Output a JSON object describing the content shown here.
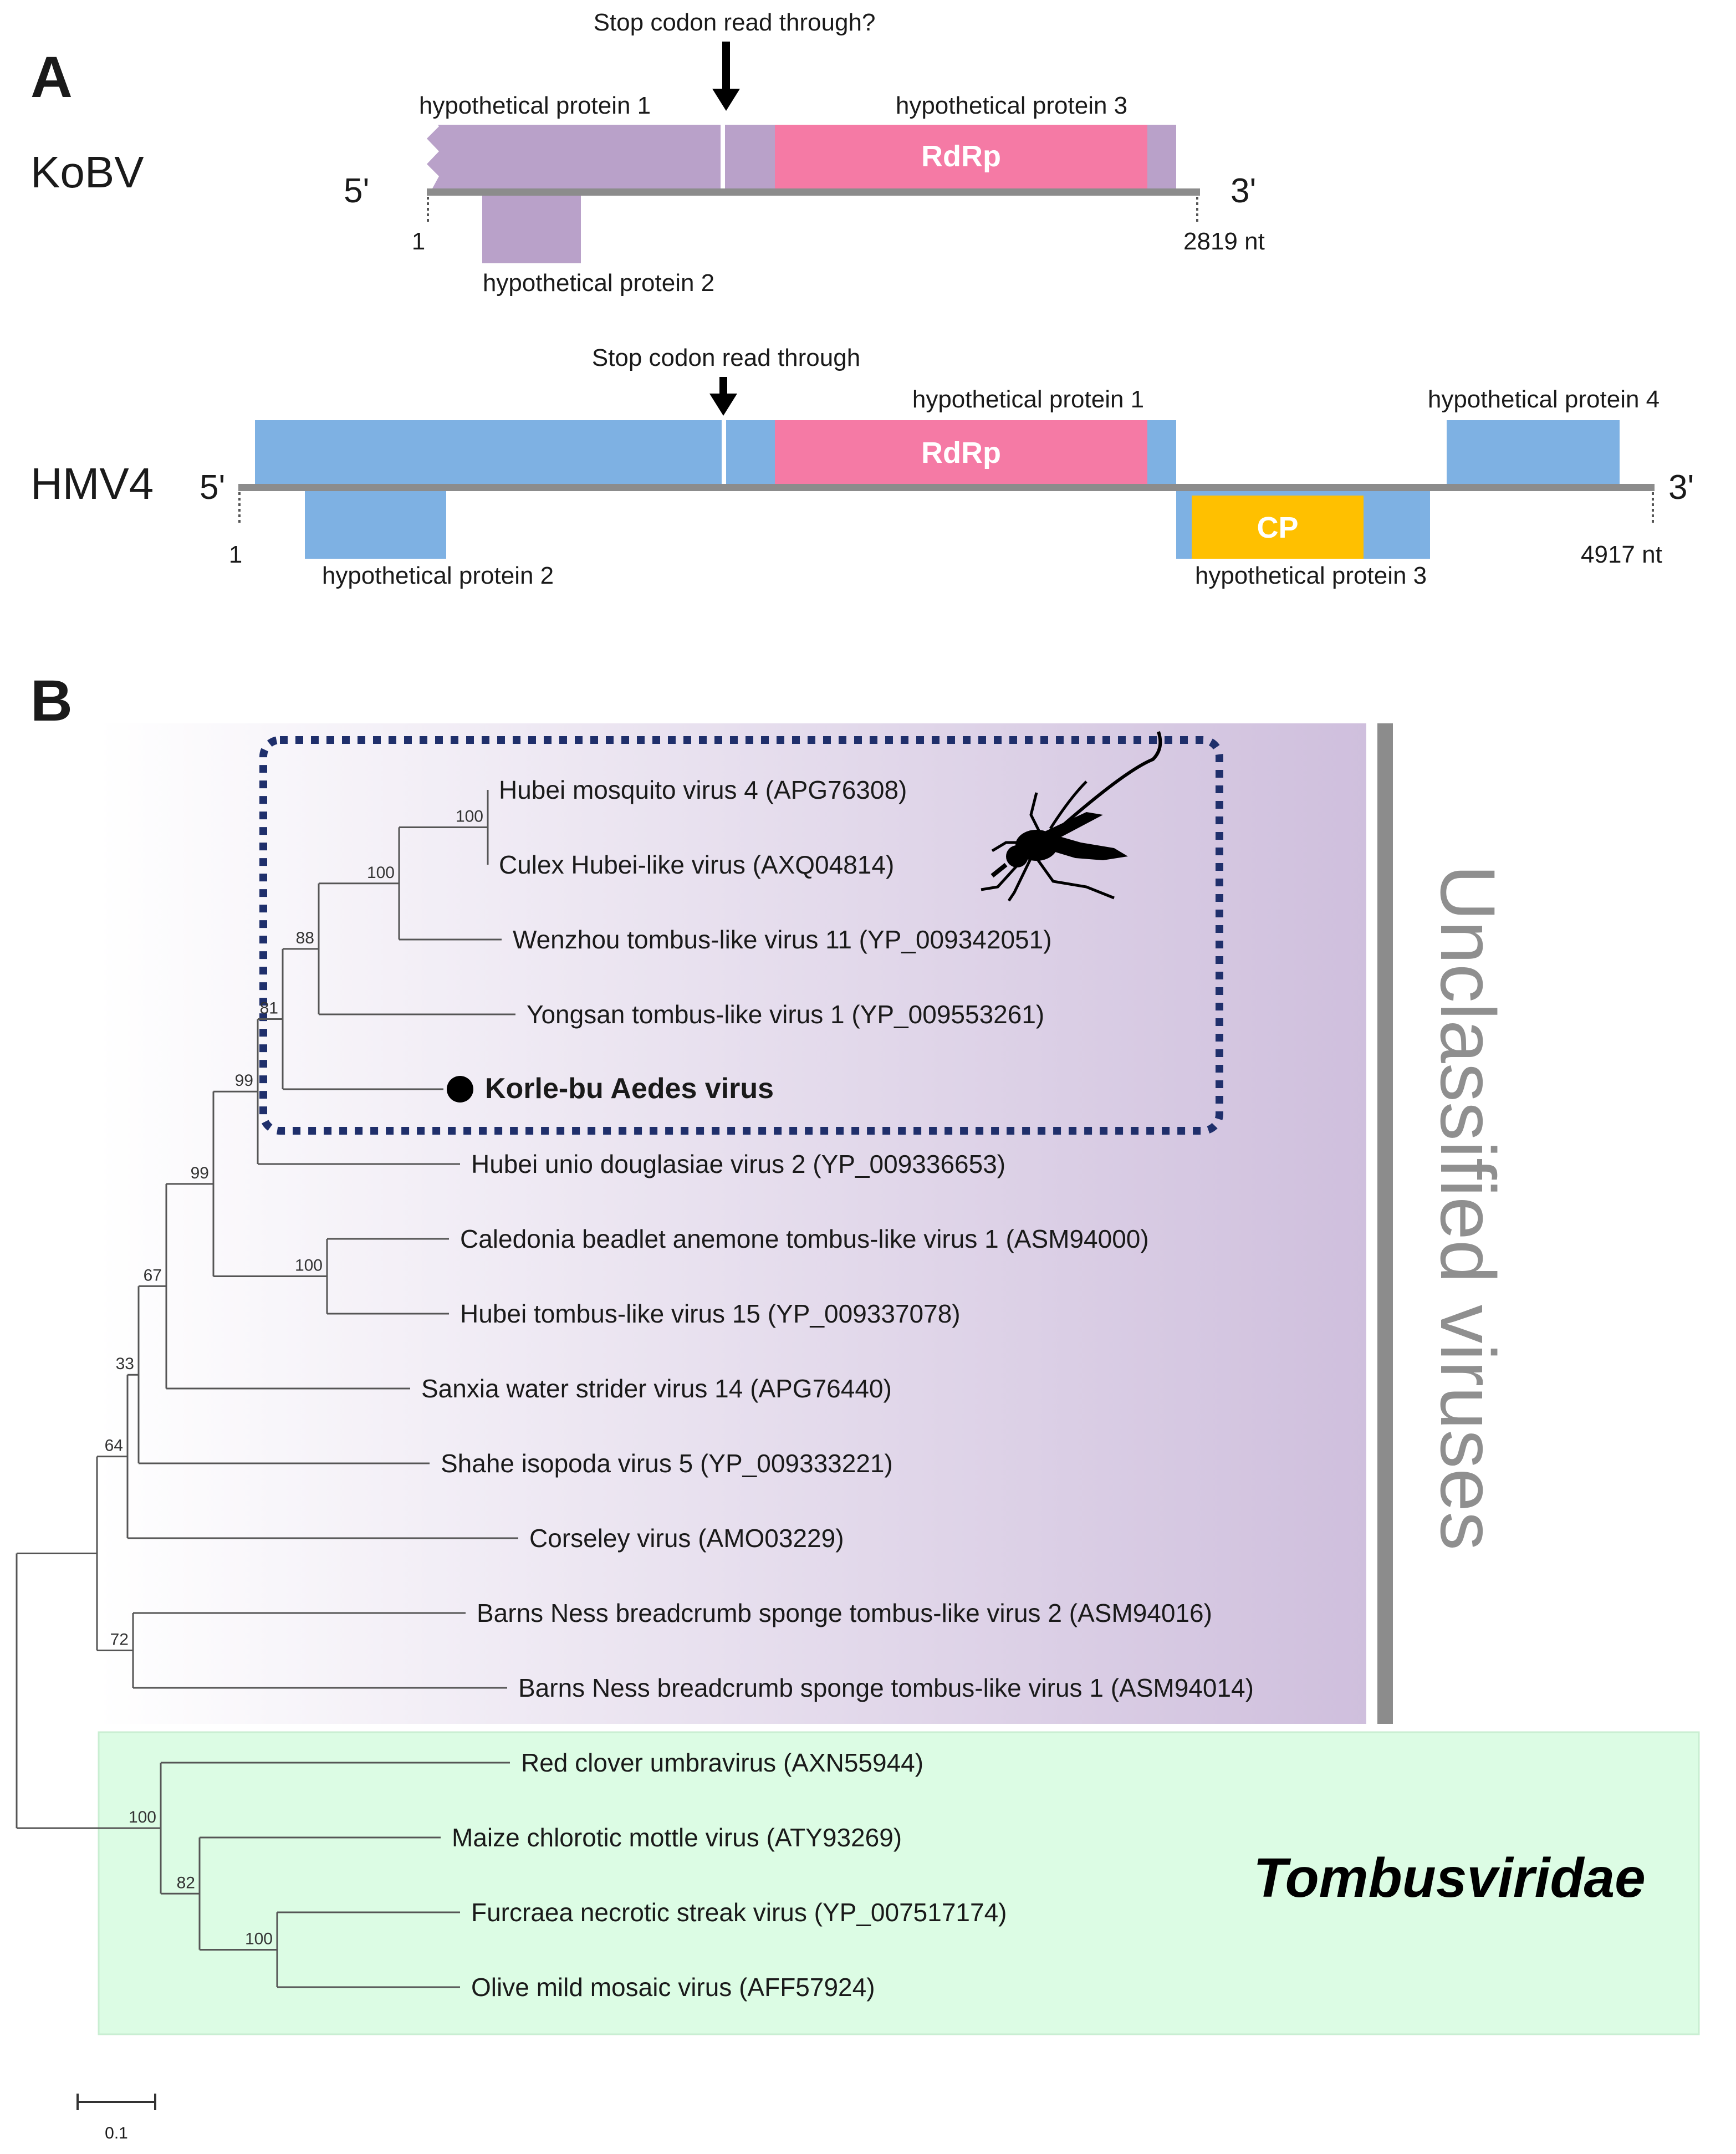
{
  "panelA": {
    "label": "A",
    "kobv": {
      "name": "KoBV",
      "five_prime": "5'",
      "three_prime": "3'",
      "start": "1",
      "end": "2819 nt",
      "annotation": "Stop codon read through?",
      "hp1": "hypothetical protein 1",
      "hp2": "hypothetical protein 2",
      "hp3": "hypothetical protein 3",
      "rdrp": "RdRp"
    },
    "hmv4": {
      "name": "HMV4",
      "five_prime": "5'",
      "three_prime": "3'",
      "start": "1",
      "end": "4917 nt",
      "annotation": "Stop codon read through",
      "hp1": "hypothetical protein 1",
      "hp2": "hypothetical protein 2",
      "hp3": "hypothetical protein 3",
      "hp4": "hypothetical protein 4",
      "rdrp": "RdRp",
      "cp": "CP"
    },
    "colors": {
      "kobv": "#b9a1c9",
      "hmv4": "#7eb1e3",
      "rdrp": "#f57aa5",
      "cp": "#ffc000",
      "genome_line": "#8c8c8c"
    }
  },
  "panelB": {
    "label": "B",
    "group_unclassified": "Unclassified viruses",
    "group_tombus": "Tombusviridae",
    "scale": "0.1",
    "taxa": [
      "Hubei mosquito virus 4 (APG76308)",
      "Culex Hubei-like virus (AXQ04814)",
      "Wenzhou tombus-like virus 11 (YP_009342051)",
      "Yongsan tombus-like virus 1 (YP_009553261)",
      "Korle-bu Aedes virus",
      "Hubei unio douglasiae virus 2 (YP_009336653)",
      "Caledonia beadlet anemone tombus-like virus 1 (ASM94000)",
      "Hubei tombus-like virus 15 (YP_009337078)",
      "Sanxia water strider virus 14 (APG76440)",
      "Shahe isopoda virus 5 (YP_009333221)",
      "Corseley virus (AMO03229)",
      "Barns Ness breadcrumb sponge tombus-like virus 2 (ASM94016)",
      "Barns Ness breadcrumb sponge tombus-like virus 1 (ASM94014)",
      "Red clover umbravirus (AXN55944)",
      "Maize chlorotic mottle virus (ATY93269)",
      "Furcraea necrotic streak virus (YP_007517174)",
      "Olive mild mosaic virus (AFF57924)"
    ],
    "bootstrap": [
      "100",
      "100",
      "88",
      "81",
      "99",
      "99",
      "67",
      "100",
      "33",
      "64",
      "72",
      "100",
      "82",
      "100"
    ],
    "colors": {
      "unclassified_bg": "#d3c3e0",
      "tombus_bg": "#dcfce4",
      "dotted_box": "#1f2f6b",
      "group_bar": "#8c8c8c",
      "group_text": "#8f8f8f"
    }
  }
}
